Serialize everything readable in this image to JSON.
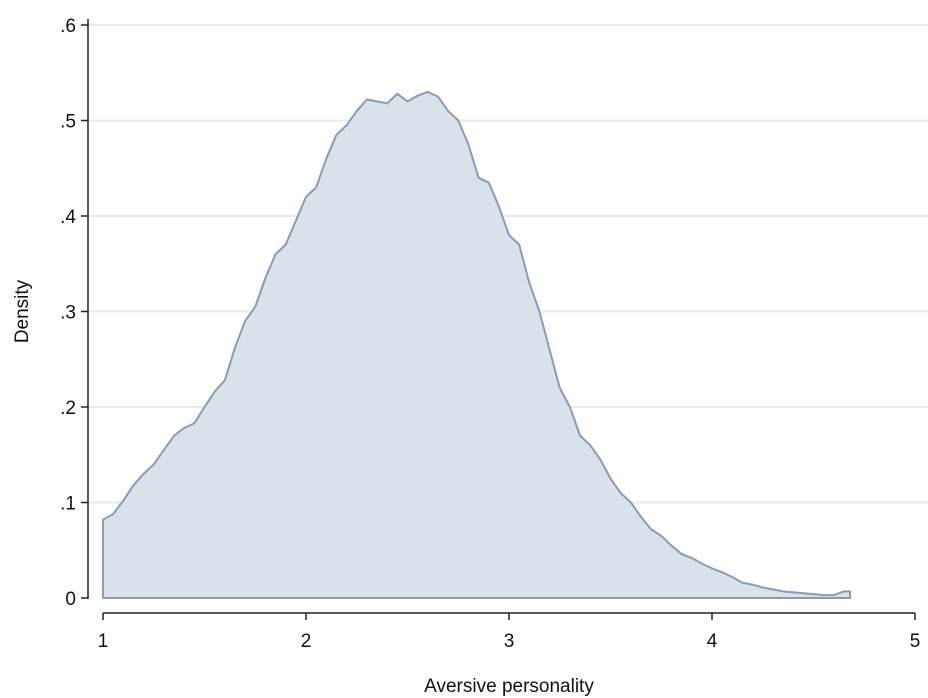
{
  "chart_data": {
    "type": "area",
    "title": "",
    "xlabel": "Aversive personality",
    "ylabel": "Density",
    "xlim": [
      1,
      5
    ],
    "ylim": [
      0,
      0.6
    ],
    "xticks": [
      {
        "value": 1,
        "label": "1"
      },
      {
        "value": 2,
        "label": "2"
      },
      {
        "value": 3,
        "label": "3"
      },
      {
        "value": 4,
        "label": "4"
      },
      {
        "value": 5,
        "label": "5"
      }
    ],
    "yticks": [
      {
        "value": 0,
        "label": "0"
      },
      {
        "value": 0.1,
        "label": ".1"
      },
      {
        "value": 0.2,
        "label": ".2"
      },
      {
        "value": 0.3,
        "label": ".3"
      },
      {
        "value": 0.4,
        "label": ".4"
      },
      {
        "value": 0.5,
        "label": ".5"
      },
      {
        "value": 0.6,
        "label": ".6"
      }
    ],
    "grid": true,
    "legend": "none",
    "colors": {
      "fill": "#d9e1e9",
      "line": "#8a9cb0",
      "grid": "#e3ecee",
      "axis": "#222222"
    },
    "series": [
      {
        "x": [
          1.0,
          1.05,
          1.1,
          1.15,
          1.2,
          1.25,
          1.3,
          1.35,
          1.4,
          1.45,
          1.5,
          1.55,
          1.6,
          1.65,
          1.7,
          1.75,
          1.8,
          1.85,
          1.9,
          1.95,
          2.0,
          2.05,
          2.1,
          2.15,
          2.2,
          2.25,
          2.3,
          2.35,
          2.4,
          2.45,
          2.5,
          2.55,
          2.6,
          2.65,
          2.7,
          2.75,
          2.8,
          2.85,
          2.9,
          2.95,
          3.0,
          3.05,
          3.1,
          3.15,
          3.2,
          3.25,
          3.3,
          3.35,
          3.4,
          3.45,
          3.5,
          3.55,
          3.6,
          3.65,
          3.7,
          3.75,
          3.8,
          3.85,
          3.9,
          3.95,
          4.0,
          4.05,
          4.1,
          4.15,
          4.2,
          4.25,
          4.3,
          4.35,
          4.4,
          4.45,
          4.5,
          4.55,
          4.6,
          4.65,
          4.68
        ],
        "y": [
          0.082,
          0.088,
          0.102,
          0.118,
          0.13,
          0.14,
          0.155,
          0.17,
          0.178,
          0.183,
          0.2,
          0.216,
          0.228,
          0.262,
          0.29,
          0.305,
          0.335,
          0.36,
          0.37,
          0.395,
          0.42,
          0.43,
          0.46,
          0.485,
          0.495,
          0.51,
          0.522,
          0.52,
          0.518,
          0.528,
          0.52,
          0.526,
          0.53,
          0.525,
          0.51,
          0.5,
          0.475,
          0.44,
          0.435,
          0.41,
          0.38,
          0.37,
          0.33,
          0.3,
          0.26,
          0.22,
          0.2,
          0.17,
          0.16,
          0.145,
          0.125,
          0.11,
          0.1,
          0.085,
          0.072,
          0.065,
          0.055,
          0.046,
          0.042,
          0.036,
          0.031,
          0.027,
          0.022,
          0.016,
          0.014,
          0.011,
          0.009,
          0.007,
          0.006,
          0.005,
          0.004,
          0.003,
          0.003,
          0.007,
          0.007
        ]
      }
    ]
  }
}
